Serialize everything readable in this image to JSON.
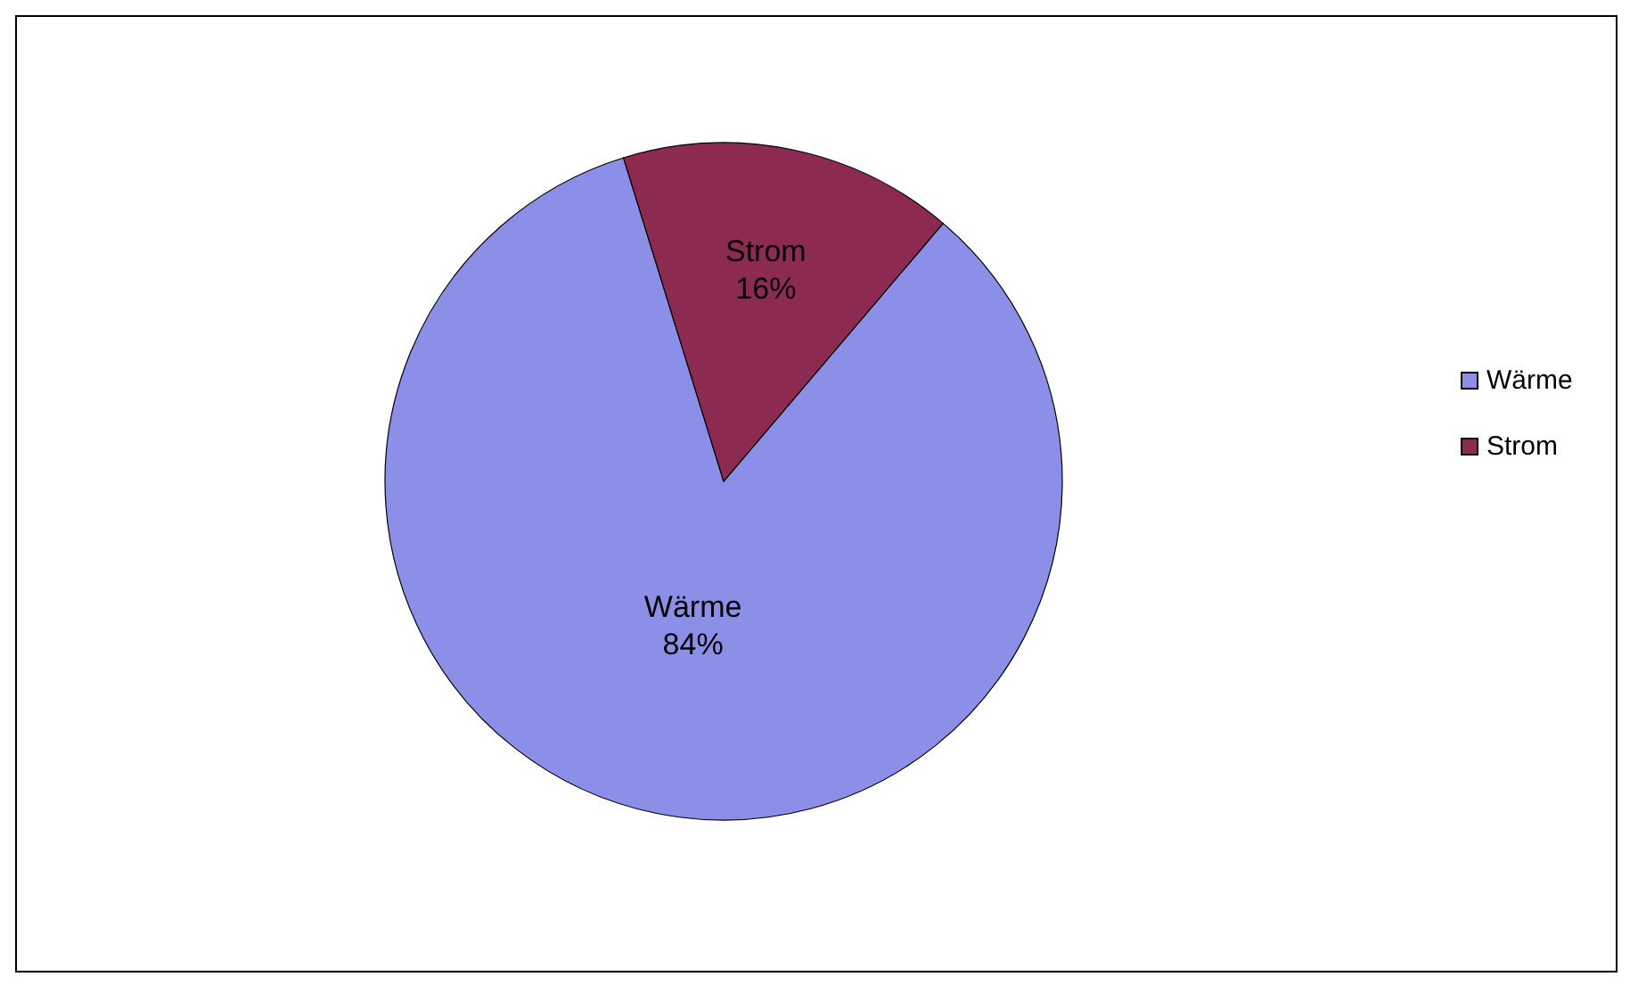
{
  "chart_data": {
    "type": "pie",
    "categories": [
      "Wärme",
      "Strom"
    ],
    "values": [
      84,
      16
    ],
    "value_labels": [
      "84%",
      "16%"
    ],
    "colors": [
      "#8b8fe8",
      "#8c2a52"
    ],
    "legend": "right"
  }
}
